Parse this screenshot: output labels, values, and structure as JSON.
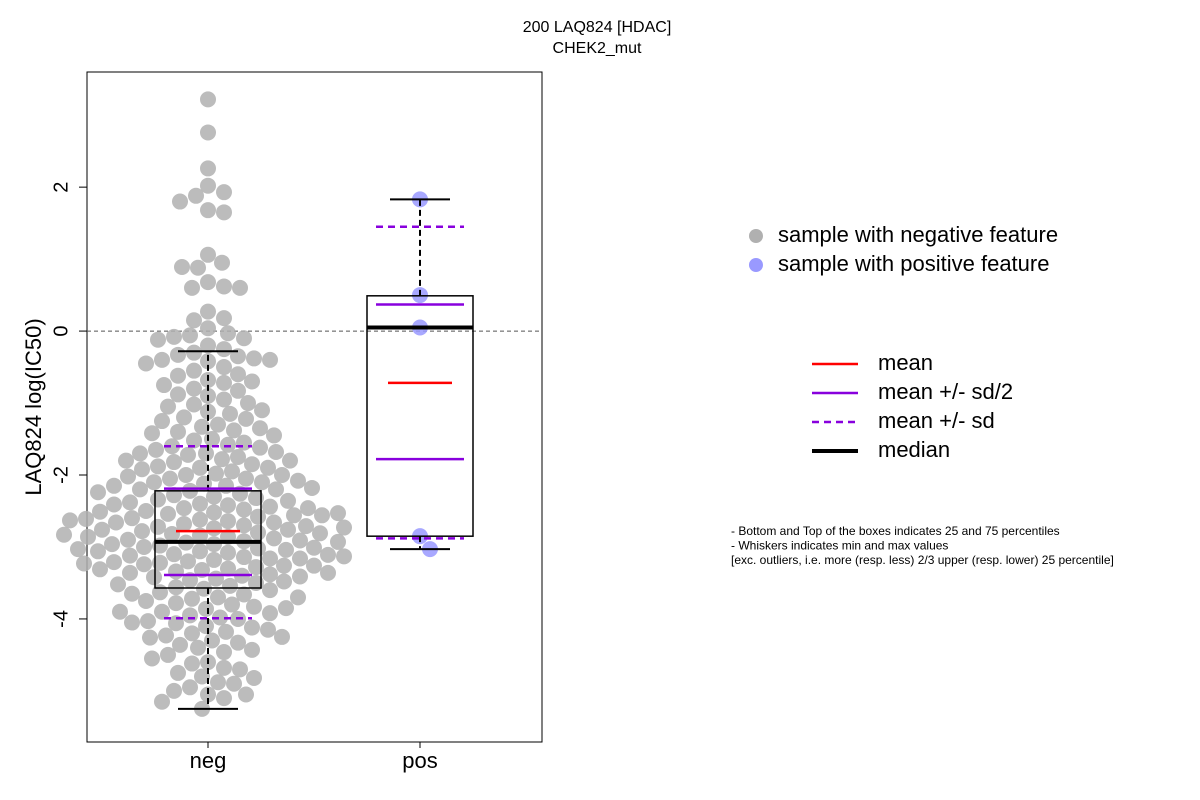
{
  "chart_data": {
    "type": "box",
    "title": "200 LAQ824 [HDAC]",
    "subtitle": "CHEK2_mut",
    "ylabel": "LAQ824 log(IC50)",
    "categories": [
      "neg",
      "pos"
    ],
    "ylim": [
      -5.71,
      3.6
    ],
    "yticks": [
      -4,
      -2,
      0,
      2
    ],
    "hline": 0,
    "boxes": [
      {
        "min": -5.25,
        "q1": -3.57,
        "median": -2.93,
        "q3": -2.22,
        "max": -0.28,
        "mean": -2.78,
        "mean_minus_half_sd": -3.39,
        "mean_plus_half_sd": -2.19,
        "mean_minus_sd": -3.99,
        "mean_plus_sd": -1.6
      },
      {
        "min": -3.03,
        "q1": -2.85,
        "median": 0.05,
        "q3": 0.49,
        "max": 1.83,
        "mean": -0.72,
        "mean_minus_half_sd": -1.78,
        "mean_plus_half_sd": 0.37,
        "mean_minus_sd": -2.88,
        "mean_plus_sd": 1.45
      }
    ],
    "series": [
      {
        "name": "sample with negative feature",
        "color": "#b0b0b0",
        "values": [
          3.22,
          2.76,
          2.26,
          2.02,
          1.93,
          1.88,
          1.8,
          1.68,
          1.65,
          1.06,
          0.95,
          0.88,
          0.89,
          0.68,
          0.62,
          0.6,
          0.6,
          0.27,
          0.18,
          0.15,
          0.04,
          -0.03,
          -0.06,
          -0.08,
          -0.1,
          -0.12,
          -0.2,
          -0.25,
          -0.3,
          -0.33,
          -0.35,
          -0.38,
          -0.4,
          -0.4,
          -0.42,
          -0.45,
          -0.5,
          -0.55,
          -0.6,
          -0.62,
          -0.68,
          -0.7,
          -0.72,
          -0.75,
          -0.8,
          -0.83,
          -0.88,
          -0.9,
          -0.95,
          -1.0,
          -1.02,
          -1.05,
          -1.1,
          -1.12,
          -1.15,
          -1.2,
          -1.22,
          -1.25,
          -1.3,
          -1.33,
          -1.35,
          -1.38,
          -1.4,
          -1.42,
          -1.45,
          -1.5,
          -1.52,
          -1.55,
          -1.58,
          -1.6,
          -1.62,
          -1.65,
          -1.68,
          -1.7,
          -1.7,
          -1.72,
          -1.75,
          -1.78,
          -1.8,
          -1.8,
          -1.82,
          -1.85,
          -1.88,
          -1.9,
          -1.9,
          -1.92,
          -1.95,
          -1.98,
          -2.0,
          -2.0,
          -2.02,
          -2.05,
          -2.05,
          -2.08,
          -2.1,
          -2.1,
          -2.12,
          -2.15,
          -2.15,
          -2.18,
          -2.2,
          -2.2,
          -2.22,
          -2.24,
          -2.26,
          -2.28,
          -2.3,
          -2.32,
          -2.34,
          -2.36,
          -2.38,
          -2.4,
          -2.42,
          -2.44,
          -2.46,
          -2.48,
          -2.5,
          -2.52,
          -2.54,
          -2.56,
          -2.58,
          -2.6,
          -2.62,
          -2.64,
          -2.66,
          -2.68,
          -2.7,
          -2.72,
          -2.74,
          -2.76,
          -2.78,
          -2.8,
          -2.82,
          -2.84,
          -2.86,
          -2.88,
          -2.9,
          -2.92,
          -2.94,
          -2.96,
          -2.98,
          -3.0,
          -3.02,
          -3.04,
          -3.06,
          -3.08,
          -3.1,
          -3.12,
          -3.14,
          -3.16,
          -3.18,
          -3.2,
          -3.22,
          -3.24,
          -3.26,
          -3.28,
          -3.3,
          -3.32,
          -3.34,
          -3.36,
          -3.38,
          -3.4,
          -3.42,
          -3.44,
          -3.46,
          -3.48,
          -3.5,
          -3.52,
          -3.54,
          -3.56,
          -3.58,
          -2.41,
          -2.46,
          -2.51,
          -2.56,
          -2.61,
          -2.66,
          -2.71,
          -2.76,
          -2.81,
          -2.86,
          -2.91,
          -2.96,
          -3.01,
          -3.06,
          -3.11,
          -3.16,
          -3.21,
          -3.26,
          -3.31,
          -3.36,
          -3.41,
          -2.53,
          -2.63,
          -2.73,
          -2.83,
          -2.93,
          -3.03,
          -3.13,
          -3.23,
          -3.6,
          -3.63,
          -3.66,
          -3.7,
          -3.72,
          -3.75,
          -3.78,
          -3.8,
          -3.83,
          -3.86,
          -3.9,
          -3.92,
          -3.95,
          -3.98,
          -4.0,
          -4.03,
          -4.06,
          -4.1,
          -4.12,
          -4.15,
          -4.18,
          -4.2,
          -4.23,
          -4.26,
          -4.3,
          -4.33,
          -4.36,
          -4.4,
          -4.43,
          -4.46,
          -4.5,
          -3.65,
          -3.85,
          -4.05,
          -4.25,
          -3.7,
          -3.9,
          -4.55,
          -4.6,
          -4.62,
          -4.68,
          -4.7,
          -4.75,
          -4.8,
          -4.82,
          -4.88,
          -4.9,
          -4.95,
          -5.0,
          -5.05,
          -5.05,
          -5.1,
          -5.15,
          -5.25
        ]
      },
      {
        "name": "sample with positive feature",
        "color": "#9999ff",
        "values": [
          1.83,
          0.5,
          0.05,
          -2.85,
          -3.03
        ]
      }
    ],
    "line_legend": [
      {
        "name": "mean",
        "color": "#ff0000",
        "style": "solid"
      },
      {
        "name": "mean +/- sd/2",
        "color": "#8800dd",
        "style": "solid"
      },
      {
        "name": "mean +/- sd",
        "color": "#8800dd",
        "style": "dashed"
      },
      {
        "name": "median",
        "color": "#000000",
        "style": "thick"
      }
    ],
    "notes": [
      "- Bottom and Top of the boxes indicates 25 and 75 percentiles",
      "- Whiskers indicates min and max values",
      "[exc. outliers, i.e. more (resp. less) 2/3 upper (resp. lower) 25 percentile]"
    ]
  }
}
